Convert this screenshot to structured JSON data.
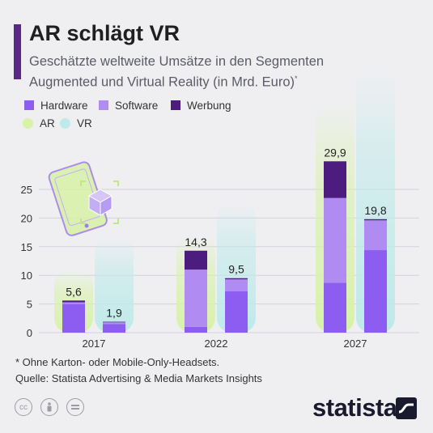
{
  "title": "AR schlägt VR",
  "subtitle_line1": "Geschätzte weltweite Umsätze in den Segmenten",
  "subtitle_line2": "Augmented und Virtual Reality (in Mrd. Euro)",
  "subtitle_sup": "*",
  "footnote": "* Ohne Karton- oder Mobile-Only-Headsets.",
  "source": "Quelle: Statista Advertising & Media Markets Insights",
  "brand": "statista",
  "license_icons": [
    "creative-commons-icon",
    "attribution-person-icon",
    "no-derivatives-icon"
  ],
  "colors": {
    "hardware": "#8d5cf0",
    "software": "#b08cf2",
    "werbung": "#4c1d7e",
    "ar_glow": "#d8f2a8",
    "vr_glow": "#bfeaea"
  },
  "chart_data": {
    "type": "bar",
    "stacked": true,
    "categories": [
      "2017",
      "2022",
      "2027"
    ],
    "groups": [
      "AR",
      "VR"
    ],
    "series": [
      {
        "name": "Hardware",
        "color": "#8d5cf0",
        "AR": [
          5.0,
          1.0,
          8.7
        ],
        "VR": [
          1.5,
          7.2,
          14.4
        ]
      },
      {
        "name": "Software",
        "color": "#b08cf2",
        "AR": [
          0.3,
          10.0,
          14.8
        ],
        "VR": [
          0.3,
          2.1,
          5.2
        ]
      },
      {
        "name": "Werbung",
        "color": "#4c1d7e",
        "AR": [
          0.3,
          3.3,
          6.4
        ],
        "VR": [
          0.1,
          0.2,
          0.2
        ]
      }
    ],
    "totals": {
      "AR": [
        "5,6",
        "14,3",
        "29,9"
      ],
      "VR": [
        "1,9",
        "9,5",
        "19,8"
      ]
    },
    "total_values": {
      "AR": [
        5.6,
        14.3,
        29.9
      ],
      "VR": [
        1.9,
        9.5,
        19.8
      ]
    },
    "legend": {
      "segments": [
        "Hardware",
        "Software",
        "Werbung"
      ],
      "groups": [
        "AR",
        "VR"
      ]
    },
    "yticks": [
      "0",
      "5",
      "10",
      "15",
      "20",
      "25"
    ],
    "ytick_values": [
      0,
      5,
      10,
      15,
      20,
      25
    ],
    "ylim": [
      0,
      30
    ],
    "grid": true,
    "legend_position": "top-left"
  }
}
